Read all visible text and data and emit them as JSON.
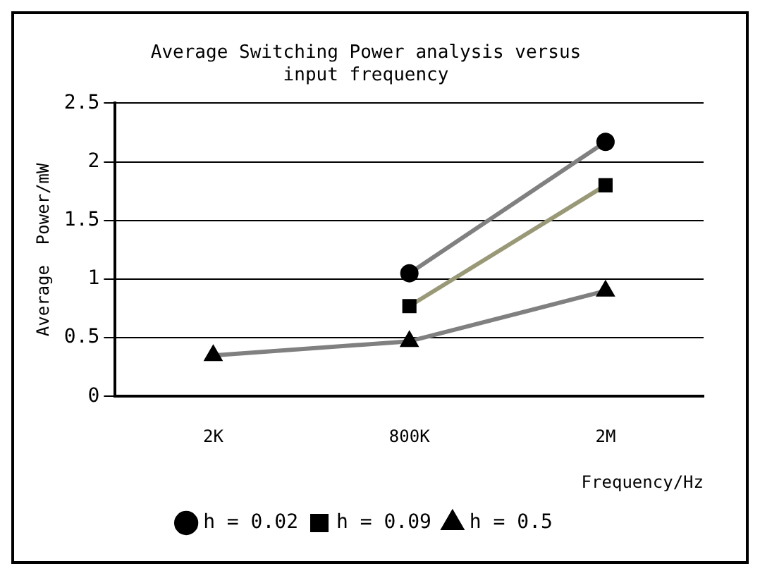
{
  "chart_data": {
    "type": "line",
    "title": [
      "Average Switching Power analysis versus",
      "input frequency"
    ],
    "xlabel": "Frequency/Hz",
    "ylabel": "Average  Power/mW",
    "categories": [
      "2K",
      "800K",
      "2M"
    ],
    "series": [
      {
        "name": "h = 0.02",
        "color": "#808080",
        "marker": "circle",
        "values": [
          null,
          1.05,
          2.17
        ]
      },
      {
        "name": "h = 0.09",
        "color": "#999977",
        "marker": "square",
        "values": [
          null,
          0.77,
          1.8
        ]
      },
      {
        "name": "h = 0.5",
        "color": "#808080",
        "marker": "triangle",
        "values": [
          0.35,
          0.47,
          0.9
        ]
      }
    ],
    "ylim": [
      0,
      2.5
    ],
    "yticks": [
      0,
      0.5,
      1,
      1.5,
      2,
      2.5
    ],
    "grid": "y",
    "legend": "bottom"
  }
}
